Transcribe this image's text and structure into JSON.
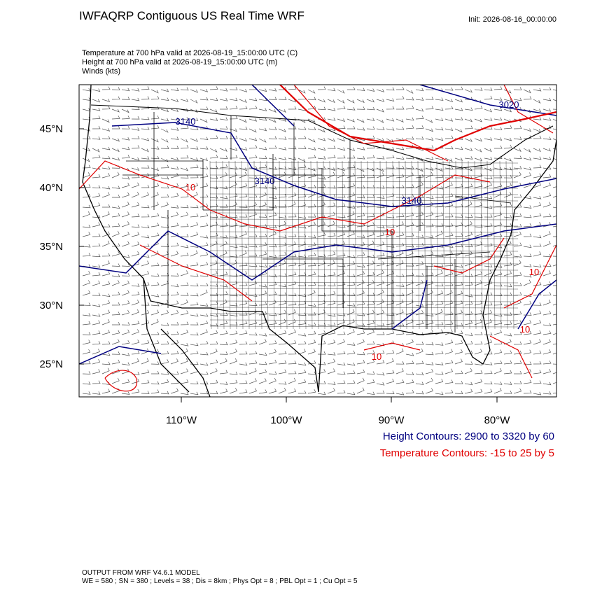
{
  "header": {
    "title": "IWFAQRP Contiguous US Real Time WRF",
    "init": "Init: 2026-08-16_00:00:00"
  },
  "fields": [
    "Temperature at 700 hPa valid at 2026-08-19_15:00:00 UTC   (C)",
    "Height at 700 hPa valid at 2026-08-19_15:00:00 UTC   (m)",
    "Winds   (kts)"
  ],
  "map": {
    "lat_labels": [
      "45°N",
      "40°N",
      "35°N",
      "30°N",
      "25°N"
    ],
    "lon_labels": [
      "110°W",
      "100°W",
      "90°W",
      "80°W"
    ],
    "height_contour_labels": [
      "3140",
      "3140",
      "3140",
      "3020"
    ],
    "temperature_contour_labels": [
      "10",
      "10",
      "10",
      "10",
      "10"
    ]
  },
  "legend": {
    "height": "Height Contours: 2900 to 3320 by 60",
    "temperature": "Temperature Contours: -15 to 25 by 5"
  },
  "footer": [
    "OUTPUT FROM WRF V4.6.1 MODEL",
    "WE = 580 ; SN = 380 ; Levels = 38 ; Dis = 8km ; Phys Opt = 8 ; PBL Opt = 1 ; Cu Opt = 5"
  ]
}
